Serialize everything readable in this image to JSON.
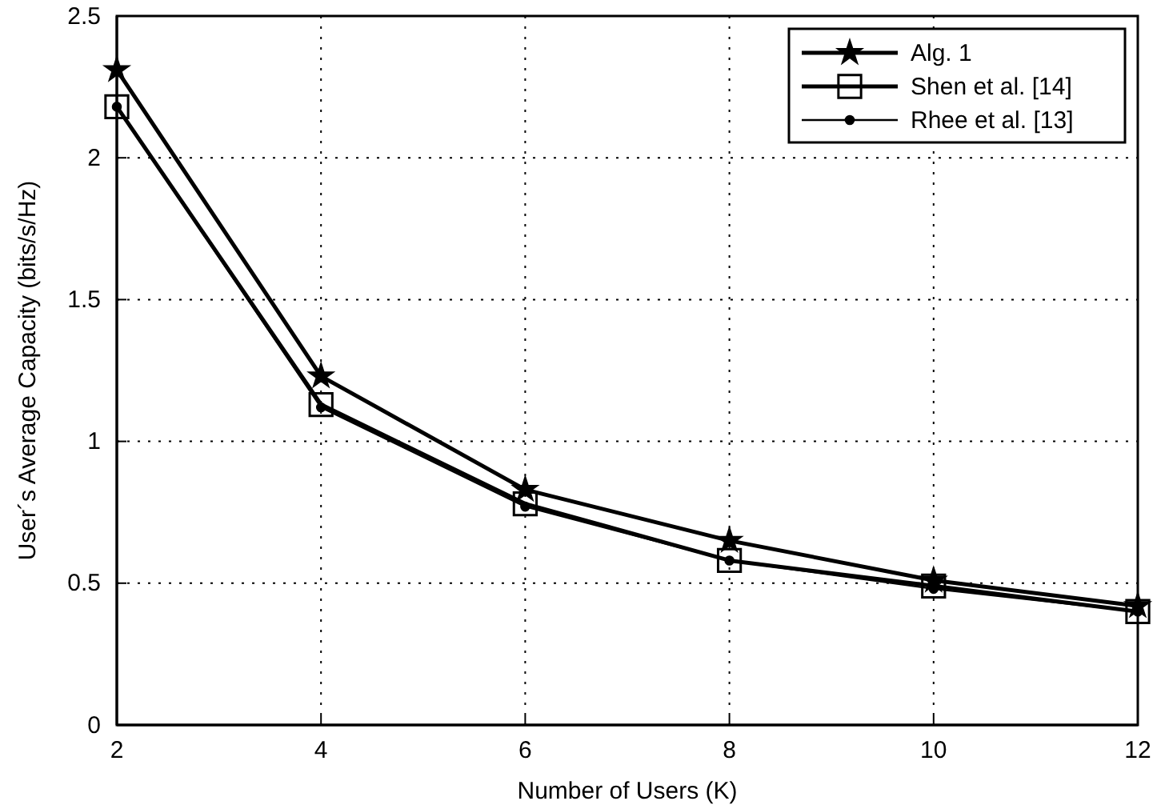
{
  "chart_data": {
    "type": "line",
    "xlabel": "Number of Users (K)",
    "ylabel": "User´s Average Capacity (bits/s/Hz)",
    "x": [
      2,
      4,
      6,
      8,
      10,
      12
    ],
    "series": [
      {
        "name": "Alg. 1",
        "color": "#000000",
        "marker": "star",
        "values": [
          2.31,
          1.23,
          0.83,
          0.65,
          0.51,
          0.42
        ]
      },
      {
        "name": "Shen et al. [14]",
        "color": "#000000",
        "marker": "square",
        "values": [
          2.18,
          1.13,
          0.78,
          0.58,
          0.49,
          0.4
        ]
      },
      {
        "name": "Rhee et al. [13]",
        "color": "#000000",
        "marker": "circle",
        "values": [
          2.18,
          1.12,
          0.77,
          0.58,
          0.48,
          0.4
        ]
      }
    ],
    "xlim": [
      2,
      12
    ],
    "xticks": [
      2,
      4,
      6,
      8,
      10,
      12
    ],
    "ylim": [
      0,
      2.5
    ],
    "yticks": [
      0,
      0.5,
      1,
      1.5,
      2,
      2.5
    ],
    "grid": true,
    "legend": "top right",
    "line_style": "solid"
  }
}
